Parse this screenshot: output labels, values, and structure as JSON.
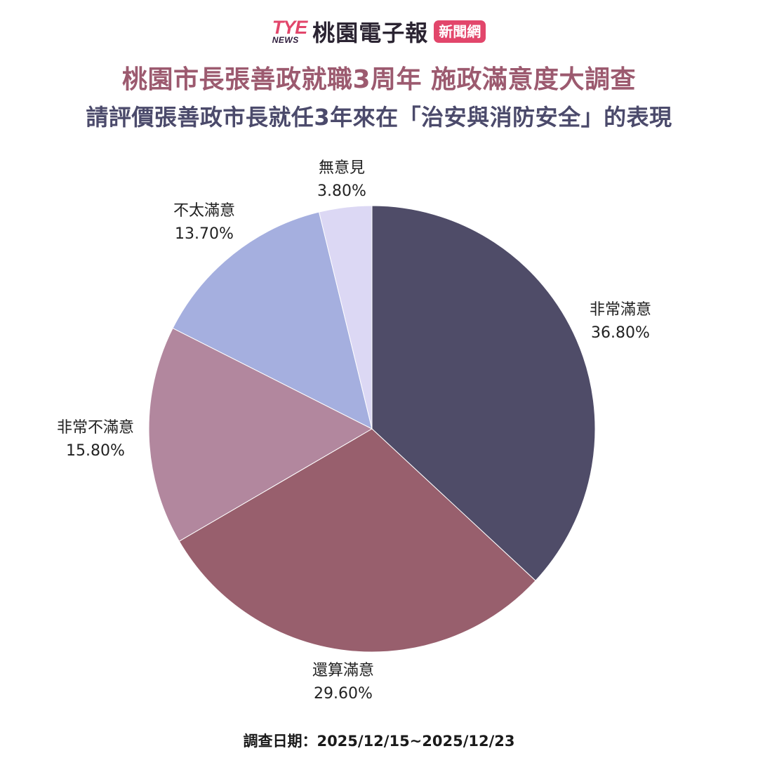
{
  "header": {
    "logo_mark": "TYE",
    "logo_sub": "NEWS",
    "logo_name": "桃園電子報",
    "logo_badge": "新聞網"
  },
  "colors": {
    "brand_tye": "#e2466b",
    "badge_bg": "#e2466b",
    "title": "#9c5a6f",
    "subtitle": "#4b4a6b"
  },
  "title": "桃園市長張善政就職3周年 施政滿意度大調查",
  "subtitle": "請評價張善政市長就任3年來在「治安與消防安全」的表現",
  "footer": "調查日期：2025/12/15~2025/12/23",
  "chart_data": {
    "type": "pie",
    "start": "12 o'clock",
    "direction": "clockwise",
    "slices": [
      {
        "label": "非常滿意",
        "value": 36.8,
        "display": "36.80%",
        "color": "#4f4c68"
      },
      {
        "label": "還算滿意",
        "value": 29.6,
        "display": "29.60%",
        "color": "#985f6d"
      },
      {
        "label": "非常不滿意",
        "value": 15.8,
        "display": "15.80%",
        "color": "#b2879e"
      },
      {
        "label": "不太滿意",
        "value": 13.7,
        "display": "13.70%",
        "color": "#a5afdf"
      },
      {
        "label": "無意見",
        "value": 3.8,
        "display": "3.80%",
        "color": "#dcd8f4"
      }
    ]
  }
}
